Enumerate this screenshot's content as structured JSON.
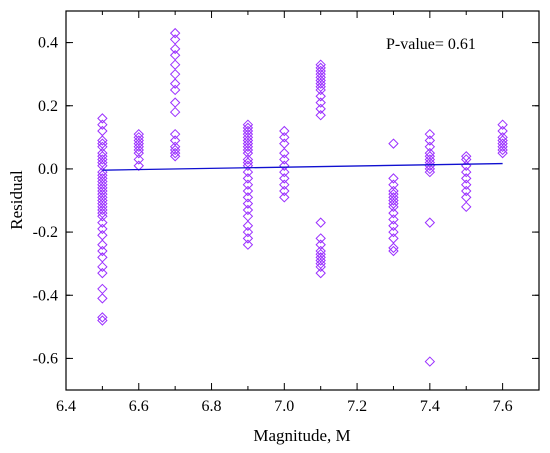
{
  "chart_data": {
    "type": "scatter",
    "title": "",
    "xlabel": "Magnitude, M",
    "ylabel": "Residual",
    "xlim": [
      6.4,
      7.7
    ],
    "ylim": [
      -0.7,
      0.5
    ],
    "x_ticks": [
      "6.4",
      "6.6",
      "6.8",
      "7.0",
      "7.2",
      "7.4",
      "7.6"
    ],
    "x_tick_values": [
      6.4,
      6.6,
      6.8,
      7.0,
      7.2,
      7.4,
      7.6
    ],
    "y_ticks": [
      "-0.6",
      "-0.4",
      "-0.2",
      "0.0",
      "0.2",
      "0.4"
    ],
    "y_tick_values": [
      -0.6,
      -0.4,
      -0.2,
      0.0,
      0.2,
      0.4
    ],
    "annotation": "P-value= 0.61",
    "marker_color": "#9b30ff",
    "line_color": "#1010d0",
    "grid": false,
    "series": [
      {
        "marker": "diamond",
        "points": [
          [
            6.5,
            0.16
          ],
          [
            6.5,
            0.14
          ],
          [
            6.5,
            0.12
          ],
          [
            6.5,
            0.09
          ],
          [
            6.5,
            0.08
          ],
          [
            6.5,
            0.07
          ],
          [
            6.5,
            0.05
          ],
          [
            6.5,
            0.04
          ],
          [
            6.5,
            0.03
          ],
          [
            6.5,
            0.02
          ],
          [
            6.5,
            0.01
          ],
          [
            6.5,
            -0.01
          ],
          [
            6.5,
            -0.02
          ],
          [
            6.5,
            -0.03
          ],
          [
            6.5,
            -0.04
          ],
          [
            6.5,
            -0.05
          ],
          [
            6.5,
            -0.06
          ],
          [
            6.5,
            -0.07
          ],
          [
            6.5,
            -0.08
          ],
          [
            6.5,
            -0.09
          ],
          [
            6.5,
            -0.1
          ],
          [
            6.5,
            -0.11
          ],
          [
            6.5,
            -0.12
          ],
          [
            6.5,
            -0.13
          ],
          [
            6.5,
            -0.14
          ],
          [
            6.5,
            -0.15
          ],
          [
            6.5,
            -0.17
          ],
          [
            6.5,
            -0.19
          ],
          [
            6.5,
            -0.21
          ],
          [
            6.5,
            -0.24
          ],
          [
            6.5,
            -0.26
          ],
          [
            6.5,
            -0.28
          ],
          [
            6.5,
            -0.31
          ],
          [
            6.5,
            -0.33
          ],
          [
            6.5,
            -0.38
          ],
          [
            6.5,
            -0.41
          ],
          [
            6.5,
            -0.47
          ],
          [
            6.5,
            -0.48
          ],
          [
            6.6,
            0.11
          ],
          [
            6.6,
            0.1
          ],
          [
            6.6,
            0.09
          ],
          [
            6.6,
            0.08
          ],
          [
            6.6,
            0.07
          ],
          [
            6.6,
            0.06
          ],
          [
            6.6,
            0.05
          ],
          [
            6.6,
            0.03
          ],
          [
            6.6,
            0.01
          ],
          [
            6.7,
            0.43
          ],
          [
            6.7,
            0.41
          ],
          [
            6.7,
            0.38
          ],
          [
            6.7,
            0.36
          ],
          [
            6.7,
            0.33
          ],
          [
            6.7,
            0.3
          ],
          [
            6.7,
            0.27
          ],
          [
            6.7,
            0.25
          ],
          [
            6.7,
            0.21
          ],
          [
            6.7,
            0.18
          ],
          [
            6.7,
            0.11
          ],
          [
            6.7,
            0.09
          ],
          [
            6.7,
            0.07
          ],
          [
            6.7,
            0.06
          ],
          [
            6.7,
            0.05
          ],
          [
            6.7,
            0.04
          ],
          [
            6.9,
            0.14
          ],
          [
            6.9,
            0.13
          ],
          [
            6.9,
            0.12
          ],
          [
            6.9,
            0.11
          ],
          [
            6.9,
            0.1
          ],
          [
            6.9,
            0.09
          ],
          [
            6.9,
            0.08
          ],
          [
            6.9,
            0.07
          ],
          [
            6.9,
            0.06
          ],
          [
            6.9,
            0.05
          ],
          [
            6.9,
            0.03
          ],
          [
            6.9,
            0.02
          ],
          [
            6.9,
            0.01
          ],
          [
            6.9,
            -0.01
          ],
          [
            6.9,
            -0.03
          ],
          [
            6.9,
            -0.05
          ],
          [
            6.9,
            -0.07
          ],
          [
            6.9,
            -0.09
          ],
          [
            6.9,
            -0.11
          ],
          [
            6.9,
            -0.13
          ],
          [
            6.9,
            -0.15
          ],
          [
            6.9,
            -0.18
          ],
          [
            6.9,
            -0.2
          ],
          [
            6.9,
            -0.22
          ],
          [
            6.9,
            -0.24
          ],
          [
            7.0,
            0.12
          ],
          [
            7.0,
            0.1
          ],
          [
            7.0,
            0.08
          ],
          [
            7.0,
            0.05
          ],
          [
            7.0,
            0.03
          ],
          [
            7.0,
            0.01
          ],
          [
            7.0,
            -0.01
          ],
          [
            7.0,
            -0.03
          ],
          [
            7.0,
            -0.05
          ],
          [
            7.0,
            -0.07
          ],
          [
            7.0,
            -0.09
          ],
          [
            7.1,
            0.33
          ],
          [
            7.1,
            0.32
          ],
          [
            7.1,
            0.31
          ],
          [
            7.1,
            0.3
          ],
          [
            7.1,
            0.29
          ],
          [
            7.1,
            0.28
          ],
          [
            7.1,
            0.27
          ],
          [
            7.1,
            0.26
          ],
          [
            7.1,
            0.25
          ],
          [
            7.1,
            0.23
          ],
          [
            7.1,
            0.21
          ],
          [
            7.1,
            0.19
          ],
          [
            7.1,
            0.17
          ],
          [
            7.1,
            -0.17
          ],
          [
            7.1,
            -0.22
          ],
          [
            7.1,
            -0.24
          ],
          [
            7.1,
            -0.26
          ],
          [
            7.1,
            -0.27
          ],
          [
            7.1,
            -0.28
          ],
          [
            7.1,
            -0.29
          ],
          [
            7.1,
            -0.3
          ],
          [
            7.1,
            -0.31
          ],
          [
            7.1,
            -0.33
          ],
          [
            7.3,
            0.08
          ],
          [
            7.3,
            -0.03
          ],
          [
            7.3,
            -0.05
          ],
          [
            7.3,
            -0.07
          ],
          [
            7.3,
            -0.08
          ],
          [
            7.3,
            -0.09
          ],
          [
            7.3,
            -0.1
          ],
          [
            7.3,
            -0.11
          ],
          [
            7.3,
            -0.12
          ],
          [
            7.3,
            -0.14
          ],
          [
            7.3,
            -0.16
          ],
          [
            7.3,
            -0.18
          ],
          [
            7.3,
            -0.2
          ],
          [
            7.3,
            -0.22
          ],
          [
            7.3,
            -0.25
          ],
          [
            7.3,
            -0.26
          ],
          [
            7.4,
            0.11
          ],
          [
            7.4,
            0.09
          ],
          [
            7.4,
            0.07
          ],
          [
            7.4,
            0.05
          ],
          [
            7.4,
            0.04
          ],
          [
            7.4,
            0.03
          ],
          [
            7.4,
            0.02
          ],
          [
            7.4,
            0.01
          ],
          [
            7.4,
            0.0
          ],
          [
            7.4,
            -0.01
          ],
          [
            7.4,
            -0.17
          ],
          [
            7.4,
            -0.61
          ],
          [
            7.5,
            0.04
          ],
          [
            7.5,
            0.03
          ],
          [
            7.5,
            0.01
          ],
          [
            7.5,
            -0.01
          ],
          [
            7.5,
            -0.03
          ],
          [
            7.5,
            -0.05
          ],
          [
            7.5,
            -0.07
          ],
          [
            7.5,
            -0.09
          ],
          [
            7.5,
            -0.12
          ],
          [
            7.6,
            0.14
          ],
          [
            7.6,
            0.12
          ],
          [
            7.6,
            0.1
          ],
          [
            7.6,
            0.09
          ],
          [
            7.6,
            0.08
          ],
          [
            7.6,
            0.07
          ],
          [
            7.6,
            0.06
          ],
          [
            7.6,
            0.05
          ]
        ]
      }
    ],
    "fit_line": {
      "x": [
        6.5,
        7.6
      ],
      "y": [
        -0.004,
        0.017
      ]
    }
  }
}
